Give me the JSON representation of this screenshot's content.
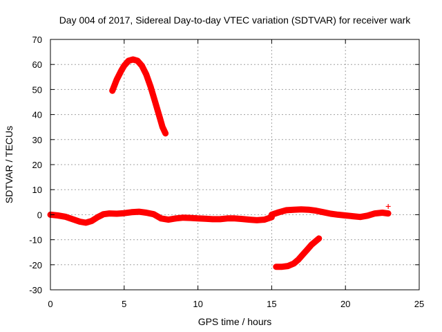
{
  "chart_data": {
    "type": "scatter",
    "title": "Day 004 of 2017, Sidereal Day-to-day VTEC variation (SDTVAR) for receiver wark",
    "xlabel": "GPS time / hours",
    "ylabel": "SDTVAR / TECUs",
    "xlim": [
      0,
      25
    ],
    "ylim": [
      -30,
      70
    ],
    "xticks": [
      0,
      5,
      10,
      15,
      20,
      25
    ],
    "yticks": [
      -30,
      -20,
      -10,
      0,
      10,
      20,
      30,
      40,
      50,
      60,
      70
    ],
    "grid": true,
    "marker": "+",
    "color": "#ff0000",
    "series": [
      {
        "name": "segment-1",
        "x": [
          4.2,
          4.5,
          4.8,
          5.0,
          5.3,
          5.6,
          5.9,
          6.2,
          6.5,
          6.8,
          7.1,
          7.4,
          7.6,
          7.8
        ],
        "y": [
          49.5,
          54,
          57.5,
          59.5,
          61.5,
          62,
          61.5,
          59.5,
          56,
          51,
          45,
          39,
          35,
          32.5
        ]
      },
      {
        "name": "segment-2",
        "x": [
          0,
          0.5,
          1.0,
          1.5,
          2.0,
          2.4,
          2.8,
          3.2,
          3.6,
          4.0,
          4.5,
          5.0,
          5.5,
          6.0,
          6.5,
          7.0,
          7.5,
          8.0,
          8.5,
          9.0,
          9.5,
          10.0,
          10.5,
          11.0,
          11.5,
          12.0,
          12.5,
          13.0,
          13.5,
          14.0,
          14.5,
          15.0
        ],
        "y": [
          0,
          -0.3,
          -0.8,
          -1.8,
          -2.8,
          -3.2,
          -2.5,
          -1.0,
          0.2,
          0.5,
          0.4,
          0.6,
          1.0,
          1.2,
          0.8,
          0.2,
          -1.5,
          -2.0,
          -1.5,
          -1.2,
          -1.3,
          -1.5,
          -1.6,
          -1.8,
          -1.8,
          -1.5,
          -1.5,
          -1.7,
          -2.0,
          -2.2,
          -2.0,
          -1.0
        ]
      },
      {
        "name": "segment-3",
        "x": [
          15.0,
          15.5,
          16.0,
          16.5,
          17.0,
          17.5,
          18.0,
          18.5,
          19.0,
          19.5,
          20.0,
          20.5,
          21.0,
          21.5,
          22.0,
          22.5,
          22.9
        ],
        "y": [
          0.0,
          1.0,
          1.8,
          2.0,
          2.1,
          2.0,
          1.6,
          1.0,
          0.4,
          0.0,
          -0.3,
          -0.6,
          -0.9,
          -0.4,
          0.5,
          0.8,
          0.5
        ]
      },
      {
        "name": "segment-4",
        "x": [
          15.3,
          15.7,
          16.1,
          16.5,
          16.8,
          17.1,
          17.4,
          17.7,
          18.0,
          18.2
        ],
        "y": [
          -20.8,
          -20.8,
          -20.5,
          -19.5,
          -18.0,
          -16.0,
          -14.0,
          -12.0,
          -10.5,
          -9.5
        ]
      },
      {
        "name": "outlier",
        "x": [
          22.9
        ],
        "y": [
          3.3
        ]
      }
    ]
  }
}
